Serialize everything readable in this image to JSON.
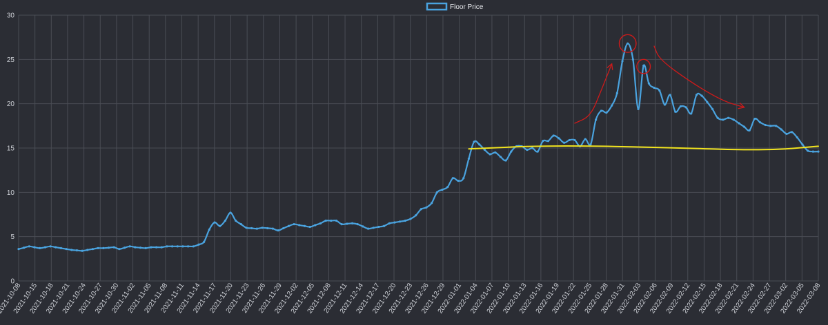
{
  "chart_data": {
    "type": "line",
    "legend": {
      "position": "top-center",
      "entries": [
        "Floor Price"
      ]
    },
    "grid": true,
    "ylim": [
      0,
      30
    ],
    "y_ticks": [
      "0",
      "5",
      "10",
      "15",
      "20",
      "25",
      "30"
    ],
    "x_ticks": [
      "2021-10-08",
      "2021-10-15",
      "2021-10-18",
      "2021-10-21",
      "2021-10-24",
      "2021-10-27",
      "2021-10-30",
      "2021-11-02",
      "2021-11-05",
      "2021-11-08",
      "2021-11-11",
      "2021-11-14",
      "2021-11-17",
      "2021-11-20",
      "2021-11-23",
      "2021-11-26",
      "2021-11-29",
      "2021-12-02",
      "2021-12-05",
      "2021-12-08",
      "2021-12-11",
      "2021-12-14",
      "2021-12-17",
      "2021-12-20",
      "2021-12-23",
      "2021-12-26",
      "2021-12-29",
      "2022-01-01",
      "2022-01-04",
      "2022-01-07",
      "2022-01-10",
      "2022-01-13",
      "2022-01-16",
      "2022-01-19",
      "2022-01-22",
      "2022-01-25",
      "2022-01-28",
      "2022-01-31",
      "2022-02-03",
      "2022-02-06",
      "2022-02-09",
      "2022-02-12",
      "2022-02-15",
      "2022-02-18",
      "2022-02-21",
      "2022-02-24",
      "2022-02-27",
      "2022-03-02",
      "2022-03-05",
      "2022-03-08"
    ],
    "series": [
      {
        "name": "Floor Price",
        "color": "#4aa3df",
        "points": [
          [
            "2021-10-08",
            3.6
          ],
          [
            "2021-10-10",
            3.9
          ],
          [
            "2021-10-12",
            3.7
          ],
          [
            "2021-10-14",
            3.9
          ],
          [
            "2021-10-15",
            3.8
          ],
          [
            "2021-10-17",
            3.6
          ],
          [
            "2021-10-18",
            3.5
          ],
          [
            "2021-10-20",
            3.4
          ],
          [
            "2021-10-21",
            3.5
          ],
          [
            "2021-10-23",
            3.7
          ],
          [
            "2021-10-24",
            3.7
          ],
          [
            "2021-10-26",
            3.8
          ],
          [
            "2021-10-27",
            3.6
          ],
          [
            "2021-10-29",
            3.9
          ],
          [
            "2021-10-30",
            3.8
          ],
          [
            "2021-11-01",
            3.7
          ],
          [
            "2021-11-02",
            3.8
          ],
          [
            "2021-11-04",
            3.8
          ],
          [
            "2021-11-05",
            3.9
          ],
          [
            "2021-11-07",
            3.9
          ],
          [
            "2021-11-08",
            3.9
          ],
          [
            "2021-11-10",
            3.9
          ],
          [
            "2021-11-11",
            4.1
          ],
          [
            "2021-11-12",
            4.4
          ],
          [
            "2021-11-13",
            5.8
          ],
          [
            "2021-11-14",
            6.6
          ],
          [
            "2021-11-15",
            6.2
          ],
          [
            "2021-11-16",
            6.8
          ],
          [
            "2021-11-17",
            7.7
          ],
          [
            "2021-11-18",
            6.8
          ],
          [
            "2021-11-20",
            6.0
          ],
          [
            "2021-11-22",
            5.9
          ],
          [
            "2021-11-23",
            6.0
          ],
          [
            "2021-11-25",
            5.9
          ],
          [
            "2021-11-26",
            5.7
          ],
          [
            "2021-11-28",
            6.2
          ],
          [
            "2021-11-29",
            6.4
          ],
          [
            "2021-12-01",
            6.2
          ],
          [
            "2021-12-02",
            6.1
          ],
          [
            "2021-12-04",
            6.5
          ],
          [
            "2021-12-05",
            6.8
          ],
          [
            "2021-12-07",
            6.8
          ],
          [
            "2021-12-08",
            6.4
          ],
          [
            "2021-12-10",
            6.5
          ],
          [
            "2021-12-11",
            6.4
          ],
          [
            "2021-12-13",
            5.9
          ],
          [
            "2021-12-14",
            6.0
          ],
          [
            "2021-12-16",
            6.2
          ],
          [
            "2021-12-17",
            6.5
          ],
          [
            "2021-12-19",
            6.7
          ],
          [
            "2021-12-20",
            6.8
          ],
          [
            "2021-12-21",
            7.0
          ],
          [
            "2021-12-22",
            7.4
          ],
          [
            "2021-12-23",
            8.1
          ],
          [
            "2021-12-24",
            8.3
          ],
          [
            "2021-12-25",
            8.8
          ],
          [
            "2021-12-26",
            10.0
          ],
          [
            "2021-12-27",
            10.3
          ],
          [
            "2021-12-28",
            10.6
          ],
          [
            "2021-12-29",
            11.6
          ],
          [
            "2021-12-30",
            11.3
          ],
          [
            "2021-12-31",
            11.6
          ],
          [
            "2022-01-01",
            13.8
          ],
          [
            "2022-01-02",
            15.7
          ],
          [
            "2022-01-03",
            15.4
          ],
          [
            "2022-01-04",
            14.8
          ],
          [
            "2022-01-05",
            14.3
          ],
          [
            "2022-01-06",
            14.5
          ],
          [
            "2022-01-07",
            14.0
          ],
          [
            "2022-01-08",
            13.6
          ],
          [
            "2022-01-09",
            14.6
          ],
          [
            "2022-01-10",
            15.2
          ],
          [
            "2022-01-11",
            15.2
          ],
          [
            "2022-01-12",
            14.8
          ],
          [
            "2022-01-13",
            15.0
          ],
          [
            "2022-01-14",
            14.6
          ],
          [
            "2022-01-15",
            15.8
          ],
          [
            "2022-01-16",
            15.8
          ],
          [
            "2022-01-17",
            16.4
          ],
          [
            "2022-01-18",
            16.1
          ],
          [
            "2022-01-19",
            15.6
          ],
          [
            "2022-01-20",
            15.9
          ],
          [
            "2022-01-21",
            15.9
          ],
          [
            "2022-01-22",
            15.2
          ],
          [
            "2022-01-23",
            16.0
          ],
          [
            "2022-01-24",
            15.4
          ],
          [
            "2022-01-25",
            18.2
          ],
          [
            "2022-01-26",
            19.2
          ],
          [
            "2022-01-27",
            19.0
          ],
          [
            "2022-01-28",
            19.8
          ],
          [
            "2022-01-29",
            21.2
          ],
          [
            "2022-01-30",
            24.8
          ],
          [
            "2022-01-31",
            26.8
          ],
          [
            "2022-02-01",
            25.0
          ],
          [
            "2022-02-02",
            19.4
          ],
          [
            "2022-02-03",
            24.3
          ],
          [
            "2022-02-04",
            22.3
          ],
          [
            "2022-02-05",
            21.8
          ],
          [
            "2022-02-06",
            21.5
          ],
          [
            "2022-02-07",
            19.9
          ],
          [
            "2022-02-08",
            21.0
          ],
          [
            "2022-02-09",
            19.1
          ],
          [
            "2022-02-10",
            19.7
          ],
          [
            "2022-02-11",
            19.6
          ],
          [
            "2022-02-12",
            18.9
          ],
          [
            "2022-02-13",
            21.0
          ],
          [
            "2022-02-14",
            20.9
          ],
          [
            "2022-02-15",
            20.2
          ],
          [
            "2022-02-16",
            19.4
          ],
          [
            "2022-02-17",
            18.4
          ],
          [
            "2022-02-18",
            18.2
          ],
          [
            "2022-02-19",
            18.4
          ],
          [
            "2022-02-20",
            18.2
          ],
          [
            "2022-02-21",
            17.8
          ],
          [
            "2022-02-22",
            17.4
          ],
          [
            "2022-02-23",
            17.0
          ],
          [
            "2022-02-24",
            18.3
          ],
          [
            "2022-02-25",
            17.9
          ],
          [
            "2022-02-26",
            17.6
          ],
          [
            "2022-02-27",
            17.5
          ],
          [
            "2022-02-28",
            17.5
          ],
          [
            "2022-03-01",
            17.1
          ],
          [
            "2022-03-02",
            16.6
          ],
          [
            "2022-03-03",
            16.8
          ],
          [
            "2022-03-04",
            16.2
          ],
          [
            "2022-03-05",
            15.4
          ],
          [
            "2022-03-06",
            14.7
          ],
          [
            "2022-03-07",
            14.6
          ],
          [
            "2022-03-08",
            14.6
          ]
        ]
      }
    ],
    "annotations": [
      {
        "kind": "yellow-trend-line",
        "color": "#f2e41e",
        "points": [
          [
            "2022-01-01",
            14.9
          ],
          [
            "2022-01-16",
            15.3
          ],
          [
            "2022-02-05",
            15.1
          ],
          [
            "2022-02-26",
            14.7
          ],
          [
            "2022-03-08",
            15.2
          ]
        ]
      },
      {
        "kind": "red-arrow-up",
        "color": "#d01a1a",
        "points": [
          [
            "2022-01-21",
            17.8
          ],
          [
            "2022-01-24",
            18.6
          ],
          [
            "2022-01-26",
            21.5
          ],
          [
            "2022-01-28",
            24.5
          ]
        ]
      },
      {
        "kind": "red-arrow-down",
        "color": "#d01a1a",
        "points": [
          [
            "2022-02-05",
            26.5
          ],
          [
            "2022-02-06",
            25.0
          ],
          [
            "2022-02-12",
            22.4
          ],
          [
            "2022-02-18",
            20.3
          ],
          [
            "2022-02-22",
            19.6
          ]
        ]
      },
      {
        "kind": "red-circle",
        "color": "#d01a1a",
        "center": [
          "2022-01-31",
          26.8
        ],
        "radius": 1.0
      },
      {
        "kind": "red-circle",
        "color": "#d01a1a",
        "center": [
          "2022-02-03",
          24.2
        ],
        "radius": 0.8
      }
    ]
  }
}
